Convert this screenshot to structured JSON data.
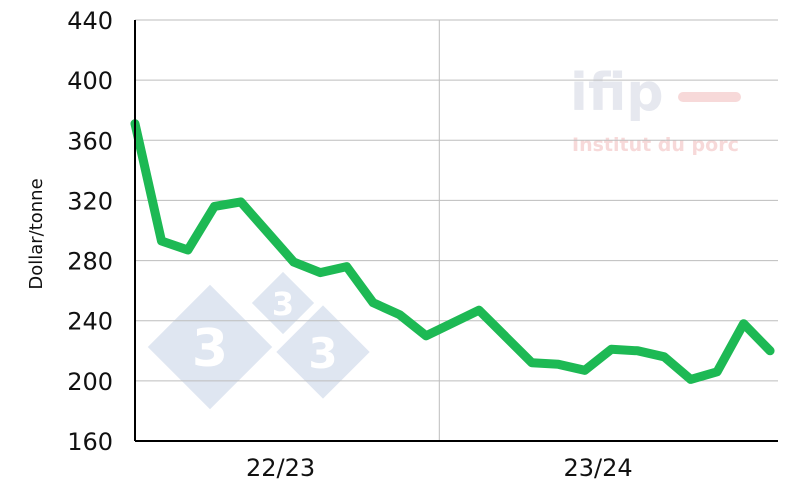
{
  "chart_data": {
    "type": "line",
    "ylabel": "Dollar/tonne",
    "ylim": [
      160,
      440
    ],
    "yticks": [
      160,
      200,
      240,
      280,
      320,
      360,
      400,
      440
    ],
    "xticks": [
      {
        "label": "22/23",
        "x": 5.5
      },
      {
        "label": "23/24",
        "x": 17.5
      }
    ],
    "season_boundary": 11.5,
    "grid": "horizontal",
    "series": [
      {
        "color": "#1db954",
        "points": [
          {
            "x": 0,
            "y": 371
          },
          {
            "x": 1,
            "y": 293
          },
          {
            "x": 2,
            "y": 287
          },
          {
            "x": 3,
            "y": 316
          },
          {
            "x": 4,
            "y": 319
          },
          {
            "x": 5,
            "y": 299
          },
          {
            "x": 6,
            "y": 279
          },
          {
            "x": 7,
            "y": 272
          },
          {
            "x": 8,
            "y": 276
          },
          {
            "x": 9,
            "y": 252
          },
          {
            "x": 10,
            "y": 244
          },
          {
            "x": 11,
            "y": 230
          },
          {
            "x": 13,
            "y": 247
          },
          {
            "x": 15,
            "y": 212
          },
          {
            "x": 16,
            "y": 211
          },
          {
            "x": 17,
            "y": 207
          },
          {
            "x": 18,
            "y": 221
          },
          {
            "x": 19,
            "y": 220
          },
          {
            "x": 20,
            "y": 216
          },
          {
            "x": 21,
            "y": 201
          },
          {
            "x": 22,
            "y": 206
          },
          {
            "x": 23,
            "y": 238
          },
          {
            "x": 24,
            "y": 220
          }
        ]
      }
    ],
    "watermarks": {
      "ifip": {
        "word": "ifip",
        "subtitle": "Institut du porc"
      },
      "three": {
        "digit": "3"
      }
    }
  }
}
